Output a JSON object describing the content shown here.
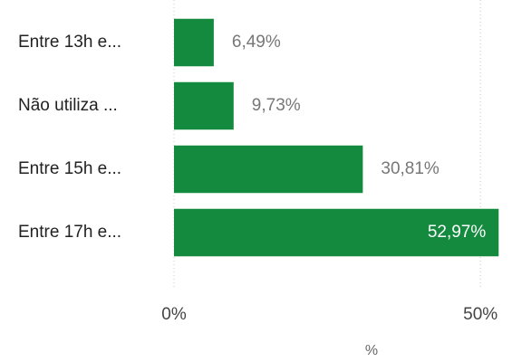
{
  "chart_data": {
    "type": "bar",
    "orientation": "horizontal",
    "categories": [
      "Entre 13h e...",
      "Não utiliza ...",
      "Entre 15h e...",
      "Entre 17h e..."
    ],
    "values": [
      6.49,
      9.73,
      30.81,
      52.97
    ],
    "value_labels": [
      "6,49%",
      "9,73%",
      "30,81%",
      "52,97%"
    ],
    "color": "#138a3e",
    "xlim": [
      0,
      55
    ],
    "xticks": [
      {
        "value": 0,
        "label": "0%"
      },
      {
        "value": 50,
        "label": "50%"
      }
    ],
    "xlabel": "%",
    "grid": true
  }
}
